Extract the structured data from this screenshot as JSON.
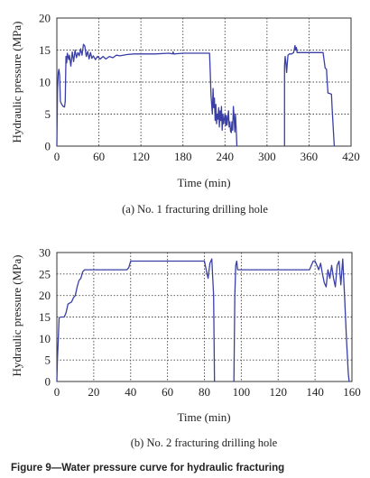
{
  "figure_caption": "Figure 9—Water pressure curve for hydraulic fracturing",
  "colors": {
    "series": "#3a3fa6",
    "grid": "#444444"
  },
  "chart_data": [
    {
      "type": "line",
      "caption": "(a) No. 1 fracturing drilling hole",
      "xlabel": "Time (min)",
      "ylabel": "Hydraulic pressure (MPa)",
      "xlim": [
        0,
        420
      ],
      "ylim": [
        0,
        20
      ],
      "xticks": [
        0,
        60,
        120,
        180,
        240,
        300,
        360,
        420
      ],
      "yticks": [
        0,
        5,
        10,
        15,
        20
      ],
      "grid": true,
      "series": [
        {
          "segments": [
            [
              [
                0,
                0
              ],
              [
                0.5,
                5
              ],
              [
                1,
                9
              ],
              [
                2,
                11.5
              ],
              [
                3,
                12
              ],
              [
                4,
                11
              ],
              [
                5,
                7
              ],
              [
                7,
                6.5
              ],
              [
                9,
                6.2
              ],
              [
                11,
                6.1
              ],
              [
                12,
                7
              ],
              [
                13,
                14
              ],
              [
                14,
                13
              ],
              [
                15,
                14.5
              ],
              [
                17,
                13.5
              ],
              [
                18,
                14.2
              ],
              [
                20,
                12.5
              ],
              [
                22,
                14.7
              ],
              [
                24,
                13.2
              ],
              [
                26,
                15
              ],
              [
                28,
                13.8
              ],
              [
                30,
                14.6
              ],
              [
                32,
                14.1
              ],
              [
                34,
                15.2
              ],
              [
                36,
                14.2
              ],
              [
                38,
                15.9
              ],
              [
                40,
                15.6
              ],
              [
                42,
                14
              ],
              [
                44,
                14.8
              ],
              [
                46,
                13.6
              ],
              [
                48,
                14.6
              ],
              [
                50,
                13.7
              ],
              [
                52,
                14.1
              ],
              [
                55,
                13.5
              ],
              [
                58,
                14
              ],
              [
                62,
                13.6
              ],
              [
                66,
                14
              ],
              [
                70,
                13.6
              ],
              [
                75,
                14
              ],
              [
                80,
                13.8
              ],
              [
                85,
                14.2
              ],
              [
                90,
                14.1
              ],
              [
                100,
                14.3
              ],
              [
                110,
                14.4
              ],
              [
                120,
                14.4
              ],
              [
                140,
                14.4
              ],
              [
                160,
                14.5
              ],
              [
                165,
                14.4
              ],
              [
                166,
                14.7
              ],
              [
                167,
                14.4
              ],
              [
                180,
                14.5
              ],
              [
                200,
                14.5
              ],
              [
                218,
                14.5
              ],
              [
                219,
                11.5
              ],
              [
                220,
                8
              ],
              [
                222,
                5
              ],
              [
                223,
                9
              ],
              [
                224,
                6
              ],
              [
                225,
                7.5
              ],
              [
                226,
                4
              ],
              [
                227,
                6.5
              ],
              [
                228,
                3.5
              ],
              [
                229,
                5
              ],
              [
                230,
                4.2
              ],
              [
                231,
                6
              ],
              [
                232,
                3
              ],
              [
                233,
                5.5
              ],
              [
                234,
                4
              ],
              [
                235,
                6.2
              ],
              [
                236,
                2.5
              ],
              [
                237,
                5
              ],
              [
                238,
                3.5
              ],
              [
                239,
                4.2
              ],
              [
                240,
                5
              ],
              [
                241,
                3.2
              ],
              [
                242,
                4.8
              ],
              [
                243,
                3.3
              ],
              [
                244,
                4.4
              ],
              [
                245,
                5.5
              ],
              [
                246,
                3
              ],
              [
                247,
                3.8
              ],
              [
                248,
                2.3
              ],
              [
                249,
                2.1
              ],
              [
                250,
                3.8
              ],
              [
                251,
                2.5
              ],
              [
                252,
                6.2
              ],
              [
                253,
                4.5
              ],
              [
                254,
                2.2
              ],
              [
                255,
                5
              ],
              [
                256,
                2.8
              ],
              [
                257,
                0
              ]
            ],
            [
              [
                325,
                0
              ],
              [
                325,
                12.5
              ],
              [
                326,
                14
              ],
              [
                327,
                13
              ],
              [
                328,
                11.5
              ],
              [
                329,
                13
              ],
              [
                330,
                14.2
              ],
              [
                332,
                14.4
              ],
              [
                335,
                14.4
              ],
              [
                338,
                14.6
              ],
              [
                340,
                15.7
              ],
              [
                341,
                15
              ],
              [
                342,
                15.4
              ],
              [
                343,
                14.6
              ],
              [
                350,
                14.6
              ],
              [
                360,
                14.6
              ],
              [
                370,
                14.6
              ],
              [
                380,
                14.6
              ],
              [
                383,
                12.2
              ],
              [
                385,
                12
              ],
              [
                386,
                10
              ],
              [
                387,
                8.3
              ],
              [
                390,
                8.2
              ],
              [
                392,
                8.1
              ],
              [
                393,
                6
              ],
              [
                394,
                4
              ],
              [
                395,
                2
              ],
              [
                396,
                0
              ]
            ]
          ]
        }
      ]
    },
    {
      "type": "line",
      "caption": "(b) No. 2 fracturing drilling hole",
      "xlabel": "Time (min)",
      "ylabel": "Hydraulic pressure (MPa)",
      "xlim": [
        0,
        160
      ],
      "ylim": [
        0,
        30
      ],
      "xticks": [
        0,
        20,
        40,
        60,
        80,
        100,
        120,
        140,
        160
      ],
      "yticks": [
        0,
        5,
        10,
        15,
        20,
        25,
        30
      ],
      "grid": true,
      "series": [
        {
          "segments": [
            [
              [
                0,
                0
              ],
              [
                0.3,
                5
              ],
              [
                0.8,
                10
              ],
              [
                1.2,
                14.8
              ],
              [
                2,
                15
              ],
              [
                4,
                15
              ],
              [
                5,
                16
              ],
              [
                6,
                18
              ],
              [
                8,
                18.5
              ],
              [
                9,
                19.5
              ],
              [
                10,
                20
              ],
              [
                11,
                22
              ],
              [
                12,
                23.5
              ],
              [
                13,
                24
              ],
              [
                14,
                25.5
              ],
              [
                15,
                26
              ],
              [
                20,
                26
              ],
              [
                30,
                26
              ],
              [
                38,
                26
              ],
              [
                39,
                26.5
              ],
              [
                40,
                28
              ],
              [
                50,
                28
              ],
              [
                60,
                28
              ],
              [
                70,
                28
              ],
              [
                80,
                28
              ],
              [
                81,
                26
              ],
              [
                82,
                24
              ],
              [
                83,
                27.5
              ],
              [
                84,
                28.5
              ],
              [
                85,
                20
              ],
              [
                85.5,
                0
              ]
            ],
            [
              [
                96,
                0
              ],
              [
                96.5,
                20
              ],
              [
                97,
                27
              ],
              [
                97.5,
                28
              ],
              [
                98,
                26
              ],
              [
                99,
                26
              ],
              [
                110,
                26
              ],
              [
                120,
                26
              ],
              [
                130,
                26
              ],
              [
                137,
                26
              ],
              [
                138,
                27
              ],
              [
                139,
                28
              ],
              [
                140,
                28
              ],
              [
                141,
                27
              ],
              [
                142,
                26
              ],
              [
                143,
                27.5
              ],
              [
                144,
                25
              ],
              [
                145,
                23
              ],
              [
                146,
                22
              ],
              [
                147,
                26
              ],
              [
                148,
                24
              ],
              [
                149,
                27
              ],
              [
                150,
                24
              ],
              [
                151,
                22
              ],
              [
                152,
                27
              ],
              [
                153,
                28
              ],
              [
                154,
                22.5
              ],
              [
                155,
                28.5
              ],
              [
                156,
                20
              ],
              [
                157,
                10
              ],
              [
                158,
                2
              ],
              [
                158.5,
                0
              ]
            ]
          ]
        }
      ]
    }
  ]
}
